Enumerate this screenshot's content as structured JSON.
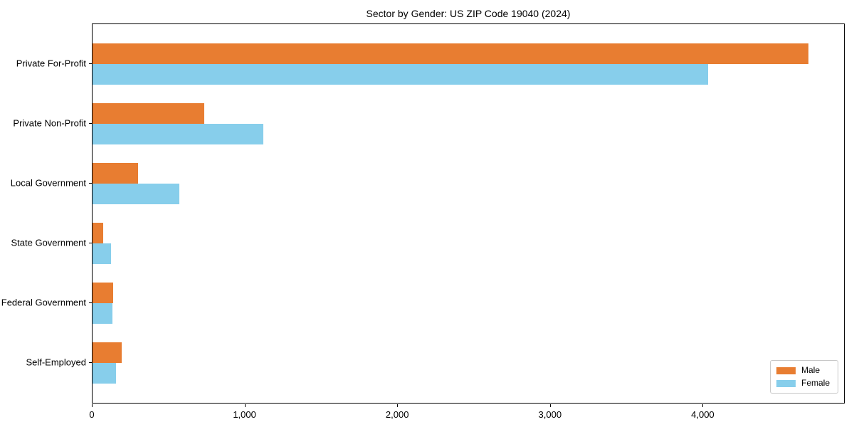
{
  "chart_data": {
    "type": "bar",
    "orientation": "horizontal",
    "title": "Sector by Gender: US ZIP Code 19040 (2024)",
    "categories": [
      "Private For-Profit",
      "Private Non-Profit",
      "Local Government",
      "State Government",
      "Federal Government",
      "Self-Employed"
    ],
    "series": [
      {
        "name": "Male",
        "color": "#E87D31",
        "values": [
          4690,
          730,
          300,
          70,
          135,
          190
        ]
      },
      {
        "name": "Female",
        "color": "#87CEEB",
        "values": [
          4030,
          1120,
          570,
          120,
          130,
          155
        ]
      }
    ],
    "xlabel": "",
    "ylabel": "",
    "xlim": [
      0,
      4930
    ],
    "xticks": [
      0,
      1000,
      2000,
      3000,
      4000
    ],
    "xtick_labels": [
      "0",
      "1,000",
      "2,000",
      "3,000",
      "4,000"
    ],
    "grid": false,
    "legend": {
      "position": "lower right",
      "entries": [
        "Male",
        "Female"
      ]
    }
  },
  "colors": {
    "male": "#E87D31",
    "female": "#87CEEB",
    "axis": "#000000",
    "background": "#FFFFFF",
    "legend_border": "#C8C8C8"
  }
}
